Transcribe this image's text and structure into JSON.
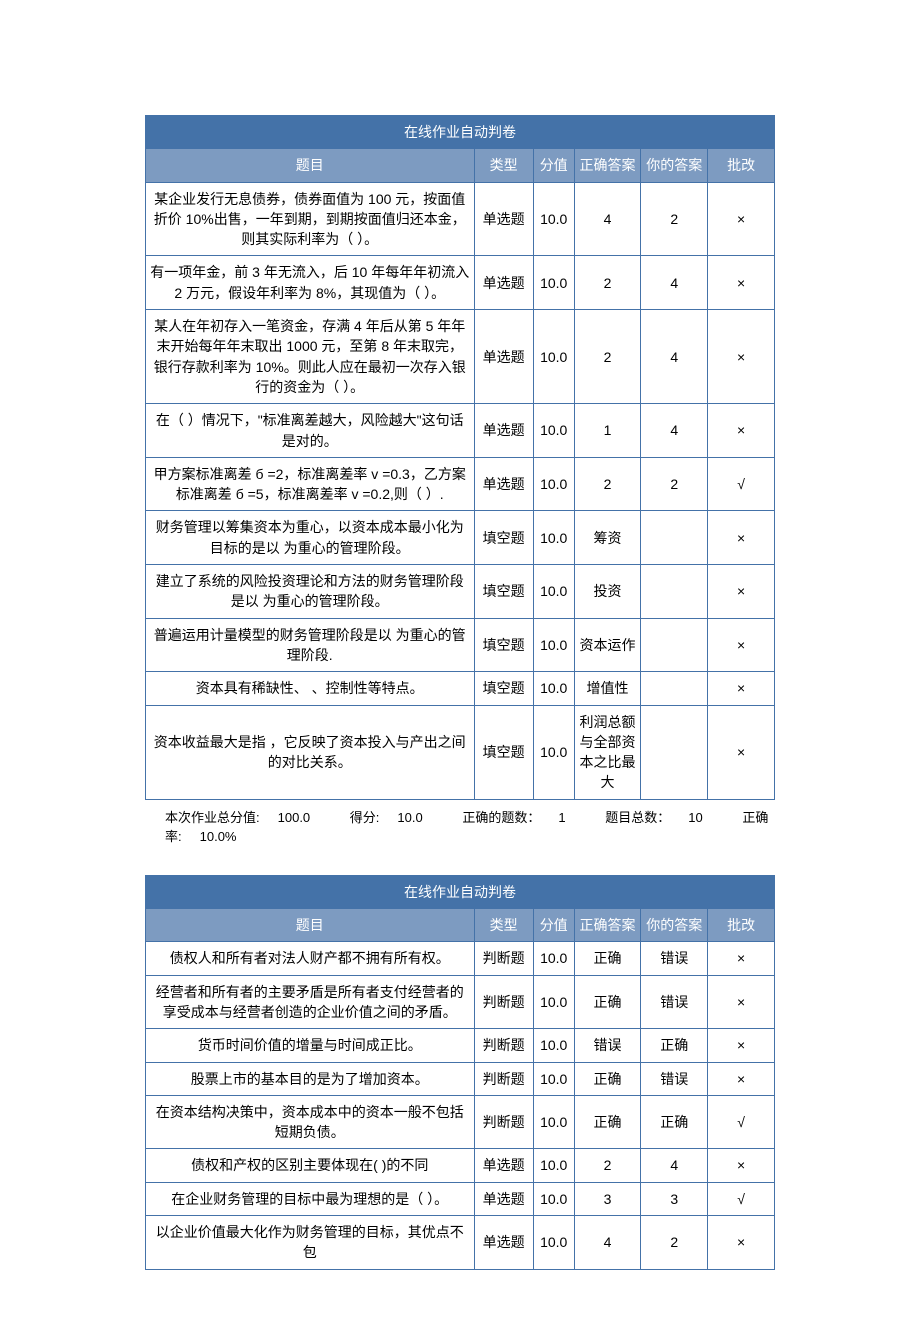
{
  "colors": {
    "header_bg": "#4472a8",
    "subheader_bg": "#7d9bc1",
    "text_white": "#ffffff",
    "border": "#4472a8",
    "body_text": "#000000"
  },
  "table1": {
    "title": "在线作业自动判卷",
    "headers": {
      "question": "题目",
      "type": "类型",
      "score": "分值",
      "correct": "正确答案",
      "your": "你的答案",
      "mark": "批改"
    },
    "rows": [
      {
        "question": "某企业发行无息债券，债券面值为 100 元，按面值折价 10%出售，一年到期，到期按面值归还本金，则其实际利率为（    ）。",
        "type": "单选题",
        "score": "10.0",
        "correct": "4",
        "your": "2",
        "mark": "×"
      },
      {
        "question": "有一项年金，前 3 年无流入，后 10 年每年年初流入 2 万元，假设年利率为 8%，其现值为（    ）。",
        "type": "单选题",
        "score": "10.0",
        "correct": "2",
        "your": "4",
        "mark": "×"
      },
      {
        "question": "某人在年初存入一笔资金，存满 4 年后从第 5 年年末开始每年年末取出 1000 元，至第 8 年末取完，银行存款利率为 10%。则此人应在最初一次存入银行的资金为（    ）。",
        "type": "单选题",
        "score": "10.0",
        "correct": "2",
        "your": "4",
        "mark": "×"
      },
      {
        "question": "在（    ）情况下，\"标准离差越大，风险越大\"这句话是对的。",
        "type": "单选题",
        "score": "10.0",
        "correct": "1",
        "your": "4",
        "mark": "×"
      },
      {
        "question": "甲方案标准离差 б =2，标准离差率 v =0.3，乙方案标准离差 б =5，标准离差率 v =0.2,则（    ）.",
        "type": "单选题",
        "score": "10.0",
        "correct": "2",
        "your": "2",
        "mark": "√"
      },
      {
        "question": "财务管理以筹集资本为重心，以资本成本最小化为目标的是以    为重心的管理阶段。",
        "type": "填空题",
        "score": "10.0",
        "correct": "筹资",
        "your": "",
        "mark": "×"
      },
      {
        "question": "建立了系统的风险投资理论和方法的财务管理阶段是以     为重心的管理阶段。",
        "type": "填空题",
        "score": "10.0",
        "correct": "投资",
        "your": "",
        "mark": "×"
      },
      {
        "question": "普遍运用计量模型的财务管理阶段是以    为重心的管理阶段.",
        "type": "填空题",
        "score": "10.0",
        "correct": "资本运作",
        "your": "",
        "mark": "×"
      },
      {
        "question": "资本具有稀缺性、    、控制性等特点。",
        "type": "填空题",
        "score": "10.0",
        "correct": "增值性",
        "your": "",
        "mark": "×"
      },
      {
        "question": "资本收益最大是指         ，它反映了资本投入与产出之间的对比关系。",
        "type": "填空题",
        "score": "10.0",
        "correct": "利润总额与全部资本之比最大",
        "your": "",
        "mark": "×"
      }
    ]
  },
  "summary1": {
    "total_label": "本次作业总分值:",
    "total_value": "100.0",
    "got_label": "得分:",
    "got_value": "10.0",
    "correct_count_label": "正确的题数：",
    "correct_count_value": "1",
    "total_count_label": "题目总数：",
    "total_count_value": "10",
    "rate_label": "正确率:",
    "rate_value": "10.0%"
  },
  "table2": {
    "title": "在线作业自动判卷",
    "headers": {
      "question": "题目",
      "type": "类型",
      "score": "分值",
      "correct": "正确答案",
      "your": "你的答案",
      "mark": "批改"
    },
    "rows": [
      {
        "question": "债权人和所有者对法人财产都不拥有所有权。",
        "type": "判断题",
        "score": "10.0",
        "correct": "正确",
        "your": "错误",
        "mark": "×"
      },
      {
        "question": "经营者和所有者的主要矛盾是所有者支付经营者的享受成本与经营者创造的企业价值之间的矛盾。",
        "type": "判断题",
        "score": "10.0",
        "correct": "正确",
        "your": "错误",
        "mark": "×"
      },
      {
        "question": "货币时间价值的增量与时间成正比。",
        "type": "判断题",
        "score": "10.0",
        "correct": "错误",
        "your": "正确",
        "mark": "×"
      },
      {
        "question": "股票上市的基本目的是为了增加资本。",
        "type": "判断题",
        "score": "10.0",
        "correct": "正确",
        "your": "错误",
        "mark": "×"
      },
      {
        "question": "在资本结构决策中，资本成本中的资本一般不包括短期负债。",
        "type": "判断题",
        "score": "10.0",
        "correct": "正确",
        "your": "正确",
        "mark": "√"
      },
      {
        "question": "债权和产权的区别主要体现在(      )的不同",
        "type": "单选题",
        "score": "10.0",
        "correct": "2",
        "your": "4",
        "mark": "×"
      },
      {
        "question": "在企业财务管理的目标中最为理想的是（     ）。",
        "type": "单选题",
        "score": "10.0",
        "correct": "3",
        "your": "3",
        "mark": "√"
      },
      {
        "question": "以企业价值最大化作为财务管理的目标，其优点不包",
        "type": "单选题",
        "score": "10.0",
        "correct": "4",
        "your": "2",
        "mark": "×"
      }
    ]
  }
}
